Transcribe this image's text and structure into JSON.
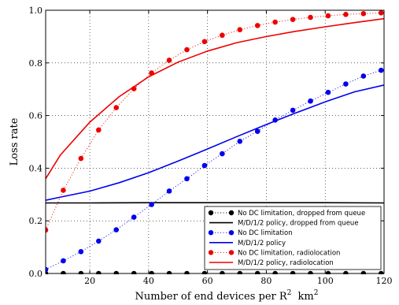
{
  "chart_data": {
    "type": "line",
    "xlabel": "Number of end devices per R",
    "xlabel_superscript": "2",
    "xlabel_suffix": "km",
    "xlabel_suffix_superscript": "2",
    "ylabel": "Loss rate",
    "xlim": [
      5,
      120
    ],
    "ylim": [
      0,
      1.0
    ],
    "x_ticks": [
      20,
      40,
      60,
      80,
      100,
      120
    ],
    "y_ticks": [
      0.0,
      0.2,
      0.4,
      0.6,
      0.8,
      1.0
    ],
    "y_tick_labels": [
      "0.0",
      "0.2",
      "0.4",
      "0.6",
      "0.8",
      "1.0"
    ],
    "grid": true,
    "legend_position": "lower-right",
    "series": [
      {
        "name": "No DC limitation, dropped from queue",
        "style": "dotted-markers",
        "color": "#000000",
        "x": [
          5,
          11,
          17,
          23,
          29,
          35,
          41,
          47,
          53,
          59,
          65,
          71,
          77,
          83,
          89,
          95,
          101,
          107,
          113,
          119
        ],
        "y": [
          0,
          0,
          0,
          0,
          0,
          0,
          0,
          0,
          0,
          0,
          0,
          0,
          0,
          0,
          0,
          0,
          0,
          0,
          0,
          0
        ]
      },
      {
        "name": "M/D/1/2 policy, dropped from queue",
        "style": "solid",
        "color": "#000000",
        "x": [
          5,
          20,
          40,
          60,
          80,
          100,
          120
        ],
        "y": [
          0.268,
          0.268,
          0.269,
          0.269,
          0.269,
          0.269,
          0.268
        ]
      },
      {
        "name": "No DC limitation",
        "style": "dotted-markers",
        "color": "#0000ee",
        "x": [
          5,
          11,
          17,
          23,
          29,
          35,
          41,
          47,
          53,
          59,
          65,
          71,
          77,
          83,
          89,
          95,
          101,
          107,
          113,
          119
        ],
        "y": [
          0.015,
          0.048,
          0.083,
          0.123,
          0.166,
          0.214,
          0.262,
          0.313,
          0.36,
          0.41,
          0.455,
          0.502,
          0.54,
          0.583,
          0.62,
          0.655,
          0.688,
          0.72,
          0.75,
          0.772
        ]
      },
      {
        "name": "M/D/1/2 policy",
        "style": "solid",
        "color": "#0000ee",
        "x": [
          5,
          10,
          20,
          30,
          40,
          50,
          60,
          70,
          80,
          90,
          100,
          110,
          120
        ],
        "y": [
          0.278,
          0.29,
          0.313,
          0.345,
          0.383,
          0.427,
          0.473,
          0.52,
          0.566,
          0.61,
          0.652,
          0.69,
          0.716
        ]
      },
      {
        "name": "No DC limitation, radiolocation",
        "style": "dotted-markers",
        "color": "#ee0000",
        "x": [
          5,
          11,
          17,
          23,
          29,
          35,
          41,
          47,
          53,
          59,
          65,
          71,
          77,
          83,
          89,
          95,
          101,
          107,
          113,
          119
        ],
        "y": [
          0.165,
          0.316,
          0.437,
          0.545,
          0.63,
          0.702,
          0.762,
          0.81,
          0.85,
          0.881,
          0.905,
          0.926,
          0.942,
          0.955,
          0.965,
          0.973,
          0.979,
          0.984,
          0.987,
          0.99
        ]
      },
      {
        "name": "M/D/1/2 policy, radiolocation",
        "style": "solid",
        "color": "#ee0000",
        "x": [
          5,
          10,
          20,
          30,
          40,
          50,
          60,
          70,
          80,
          90,
          100,
          110,
          120
        ],
        "y": [
          0.36,
          0.45,
          0.575,
          0.672,
          0.747,
          0.803,
          0.845,
          0.877,
          0.9,
          0.92,
          0.937,
          0.953,
          0.968
        ]
      }
    ]
  }
}
